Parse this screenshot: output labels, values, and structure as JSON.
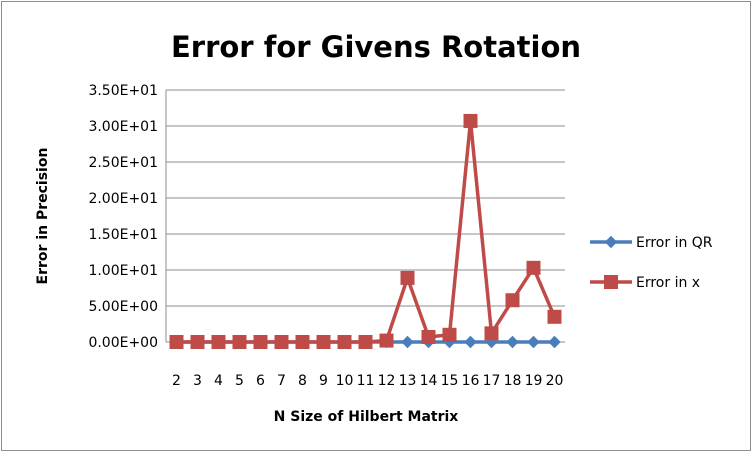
{
  "chart_data": {
    "type": "line",
    "title": "Error for Givens Rotation",
    "xlabel": "N Size of Hilbert Matrix",
    "ylabel": "Error in Precision",
    "x": [
      "2",
      "3",
      "4",
      "5",
      "6",
      "7",
      "8",
      "9",
      "10",
      "11",
      "12",
      "13",
      "14",
      "15",
      "16",
      "17",
      "18",
      "19",
      "20"
    ],
    "ylim": [
      0,
      35
    ],
    "yticks": [
      0,
      5,
      10,
      15,
      20,
      25,
      30,
      35
    ],
    "ytick_labels": [
      "0.00E+00",
      "5.00E+00",
      "1.00E+01",
      "1.50E+01",
      "2.00E+01",
      "2.50E+01",
      "3.00E+01",
      "3.50E+01"
    ],
    "grid": "horizontal",
    "legend_position": "right",
    "series": [
      {
        "name": "Error in QR",
        "color": "#4a7ebb",
        "marker": "diamond",
        "values": [
          0,
          0,
          0,
          0,
          0,
          0,
          0,
          0,
          0,
          0,
          0,
          0,
          0,
          0,
          0,
          0,
          0,
          0,
          0
        ]
      },
      {
        "name": "Error in x",
        "color": "#be4b48",
        "marker": "square",
        "values": [
          0,
          0,
          0,
          0,
          0,
          0,
          0,
          0,
          0,
          0,
          0.2,
          8.9,
          0.7,
          1.0,
          30.7,
          1.2,
          5.8,
          10.3,
          3.5
        ]
      }
    ]
  }
}
